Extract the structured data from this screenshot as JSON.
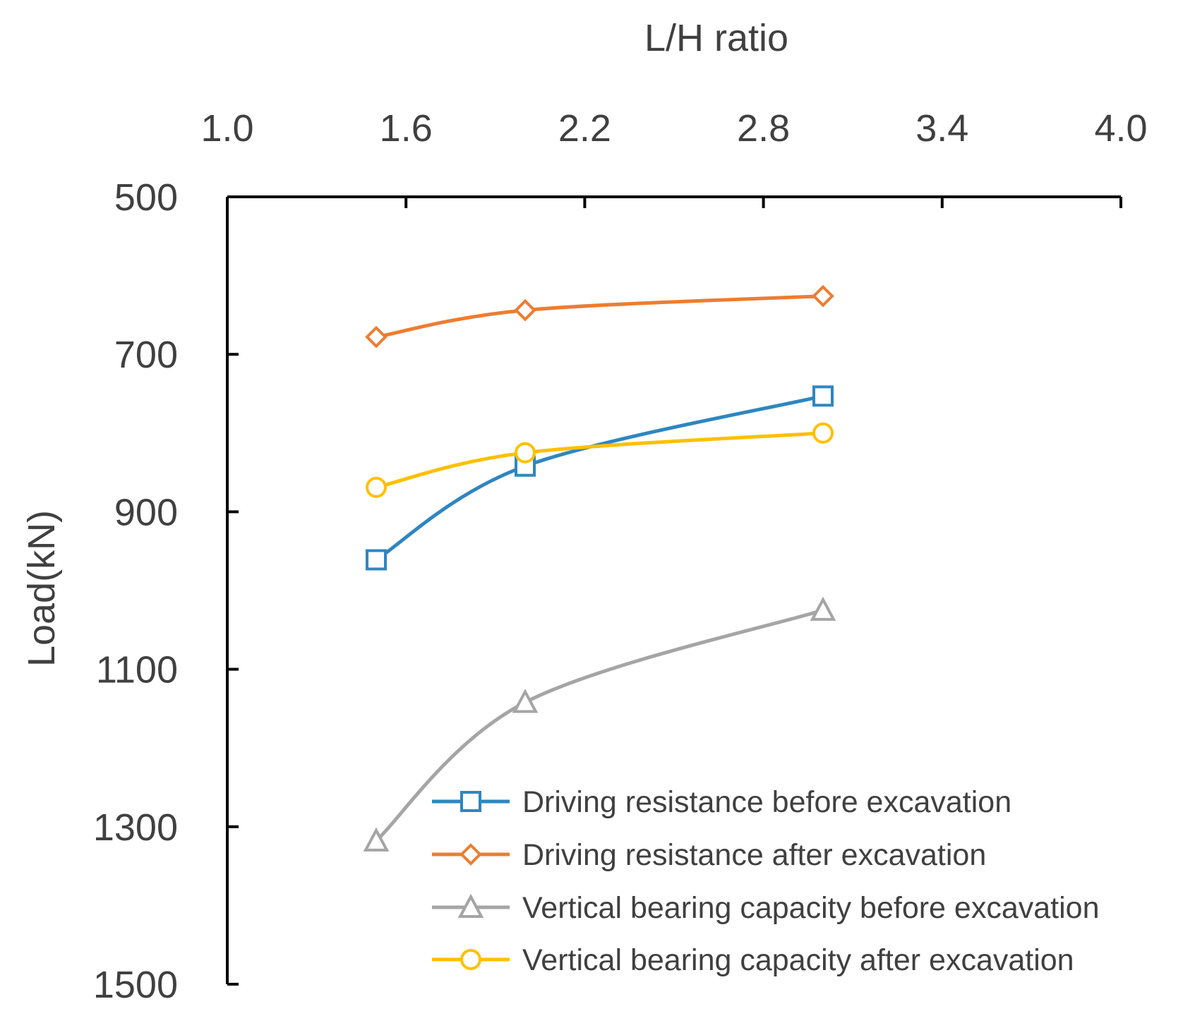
{
  "chart_data": {
    "type": "line",
    "title": "",
    "xlabel": "L/H ratio",
    "ylabel": "Load(kN)",
    "x_axis_position": "top",
    "y_axis_inverted": true,
    "xlim": [
      1.0,
      4.0
    ],
    "ylim": [
      500,
      1500
    ],
    "xticks": [
      1.0,
      1.6,
      2.2,
      2.8,
      3.4,
      4.0
    ],
    "xtick_labels": [
      "1.0",
      "1.6",
      "2.2",
      "2.8",
      "3.4",
      "4.0"
    ],
    "yticks": [
      500,
      700,
      900,
      1100,
      1300,
      1500
    ],
    "ytick_labels": [
      "500",
      "700",
      "900",
      "1100",
      "1300",
      "1500"
    ],
    "grid": false,
    "legend_position": "bottom-right",
    "series": [
      {
        "name": "Driving resistance before excavation",
        "color": "#2E86C1",
        "marker": "square",
        "x": [
          1.5,
          2.0,
          3.0
        ],
        "y": [
          961,
          842,
          753
        ]
      },
      {
        "name": "Driving resistance after excavation",
        "color": "#ED7D31",
        "marker": "diamond",
        "x": [
          1.5,
          2.0,
          3.0
        ],
        "y": [
          678,
          644,
          626
        ]
      },
      {
        "name": "Vertical bearing capacity before excavation",
        "color": "#A5A5A5",
        "marker": "triangle",
        "x": [
          1.5,
          2.0,
          3.0
        ],
        "y": [
          1318,
          1142,
          1025
        ]
      },
      {
        "name": "Vertical bearing capacity after excavation",
        "color": "#FFC000",
        "marker": "circle",
        "x": [
          1.5,
          2.0,
          3.0
        ],
        "y": [
          869,
          825,
          800
        ]
      }
    ]
  }
}
